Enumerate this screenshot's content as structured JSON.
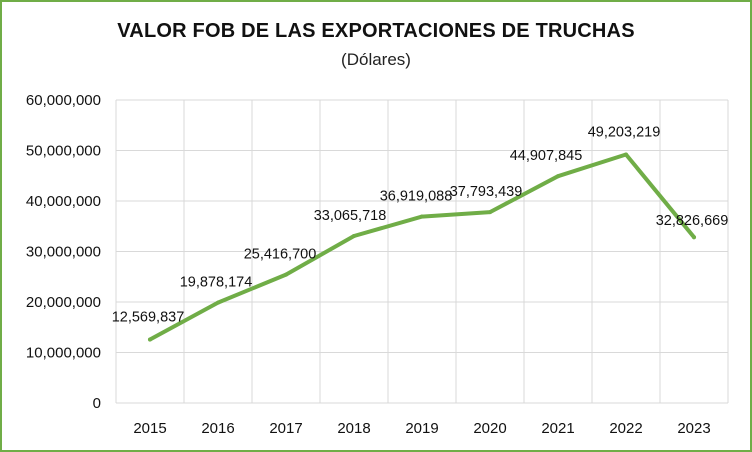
{
  "chart_data": {
    "type": "line",
    "title": "VALOR FOB DE LAS EXPORTACIONES DE TRUCHAS",
    "subtitle": "(Dólares)",
    "xlabel": "",
    "ylabel": "",
    "categories": [
      "2015",
      "2016",
      "2017",
      "2018",
      "2019",
      "2020",
      "2021",
      "2022",
      "2023"
    ],
    "values": [
      12569837,
      19878174,
      25416700,
      33065718,
      36919088,
      37793439,
      44907845,
      49203219,
      32826669
    ],
    "value_labels": [
      "12,569,837",
      "19,878,174",
      "25,416,700",
      "33,065,718",
      "36,919,088",
      "37,793,439",
      "44,907,845",
      "49,203,219",
      "32,826,669"
    ],
    "ylim": [
      0,
      60000000
    ],
    "y_ticks": [
      0,
      10000000,
      20000000,
      30000000,
      40000000,
      50000000,
      60000000
    ],
    "y_tick_labels": [
      "0",
      "10,000,000",
      "20,000,000",
      "30,000,000",
      "40,000,000",
      "50,000,000",
      "60,000,000"
    ],
    "grid": true,
    "legend": "none",
    "line_color": "#70ad47",
    "frame_color": "#70ad47",
    "grid_color": "#d9d9d9"
  }
}
